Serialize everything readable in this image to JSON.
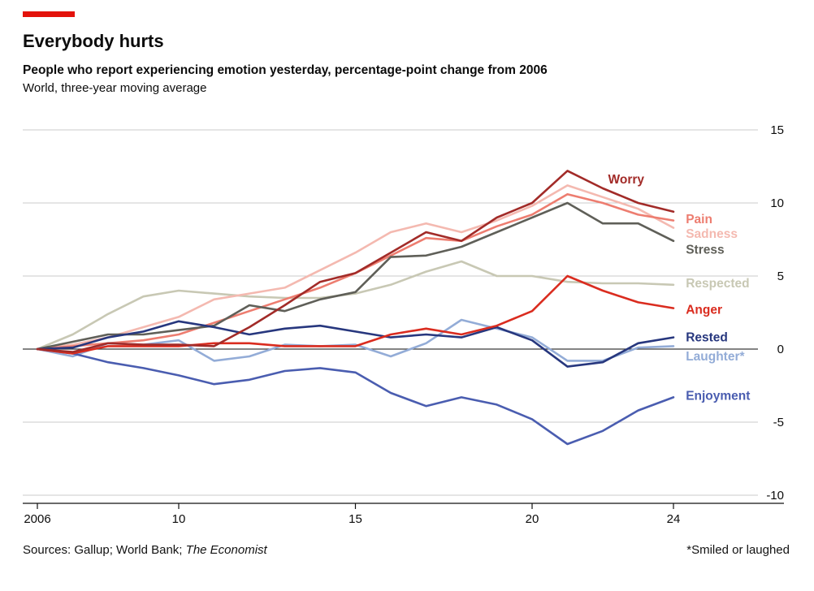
{
  "colors": {
    "accent": "#E3120B",
    "grid": "#CBCBCB",
    "zero_line": "#3a3a3a",
    "axis": "#111111",
    "text": "#0c0c0c"
  },
  "footer": {
    "sources_prefix": "Sources: Gallup; World Bank; ",
    "sources_italic": "The Economist",
    "footnote": "*Smiled or laughed"
  },
  "chart_data": {
    "type": "line",
    "title": "Everybody hurts",
    "subtitle": "People who report experiencing emotion yesterday, percentage-point change from 2006",
    "note": "World, three-year moving average",
    "xlim": [
      2006,
      2024
    ],
    "ylim": [
      -10,
      15
    ],
    "grid": true,
    "legend_position": "end-of-line-labels",
    "x": [
      2006,
      2007,
      2008,
      2009,
      2010,
      2011,
      2012,
      2013,
      2014,
      2015,
      2016,
      2017,
      2018,
      2019,
      2020,
      2021,
      2022,
      2023,
      2024
    ],
    "x_ticks": [
      {
        "v": 2006,
        "label": "2006"
      },
      {
        "v": 2010,
        "label": "10"
      },
      {
        "v": 2015,
        "label": "15"
      },
      {
        "v": 2020,
        "label": "20"
      },
      {
        "v": 2024,
        "label": "24"
      }
    ],
    "y_ticks": [
      15,
      10,
      5,
      0,
      -5,
      -10
    ],
    "series": [
      {
        "name": "Respected",
        "color": "#C8C8B4",
        "values": [
          0,
          1.0,
          2.4,
          3.6,
          4.0,
          3.8,
          3.6,
          3.5,
          3.5,
          3.8,
          4.4,
          5.3,
          6.0,
          5.0,
          5.0,
          4.6,
          4.5,
          4.5,
          4.4
        ],
        "label": {
          "x": 2024.35,
          "y": 4.5
        }
      },
      {
        "name": "Sadness",
        "color": "#F4B9B0",
        "values": [
          0,
          0.3,
          0.8,
          1.5,
          2.2,
          3.4,
          3.8,
          4.2,
          5.4,
          6.6,
          8.0,
          8.6,
          8.0,
          8.8,
          9.8,
          11.2,
          10.4,
          9.6,
          8.3
        ],
        "label": {
          "x": 2024.35,
          "y": 7.9
        }
      },
      {
        "name": "Pain",
        "color": "#ED7D70",
        "values": [
          0,
          0.2,
          0.4,
          0.6,
          1.0,
          1.8,
          2.6,
          3.4,
          4.2,
          5.2,
          6.4,
          7.6,
          7.4,
          8.4,
          9.2,
          10.6,
          10.0,
          9.2,
          8.8
        ],
        "label": {
          "x": 2024.35,
          "y": 8.9
        }
      },
      {
        "name": "Stress",
        "color": "#5F5F58",
        "values": [
          0,
          0.5,
          1.0,
          1.0,
          1.3,
          1.6,
          3.0,
          2.6,
          3.4,
          3.9,
          6.3,
          6.4,
          7.0,
          8.0,
          9.0,
          10.0,
          8.6,
          8.6,
          7.4
        ],
        "label": {
          "x": 2024.35,
          "y": 6.8
        }
      },
      {
        "name": "Laughter*",
        "color": "#93ACD7",
        "values": [
          0,
          -0.5,
          0.4,
          0.3,
          0.6,
          -0.8,
          -0.5,
          0.3,
          0.2,
          0.3,
          -0.5,
          0.4,
          2.0,
          1.4,
          0.8,
          -0.8,
          -0.8,
          0.1,
          0.2
        ],
        "label": {
          "x": 2024.35,
          "y": -0.5
        }
      },
      {
        "name": "Enjoyment",
        "color": "#4A5DB0",
        "values": [
          0,
          -0.3,
          -0.9,
          -1.3,
          -1.8,
          -2.4,
          -2.1,
          -1.5,
          -1.3,
          -1.6,
          -3.0,
          -3.9,
          -3.3,
          -3.8,
          -4.8,
          -6.5,
          -5.6,
          -4.2,
          -3.3
        ],
        "label": {
          "x": 2024.35,
          "y": -3.2
        }
      },
      {
        "name": "Rested",
        "color": "#27377E",
        "values": [
          0,
          0.1,
          0.8,
          1.2,
          1.9,
          1.5,
          1.0,
          1.4,
          1.6,
          1.2,
          0.8,
          1.0,
          0.8,
          1.5,
          0.6,
          -1.2,
          -0.9,
          0.4,
          0.8
        ],
        "label": {
          "x": 2024.35,
          "y": 0.8
        }
      },
      {
        "name": "Anger",
        "color": "#DA2C1F",
        "values": [
          0,
          -0.3,
          0.2,
          0.2,
          0.2,
          0.4,
          0.4,
          0.2,
          0.2,
          0.2,
          1.0,
          1.4,
          1.0,
          1.6,
          2.6,
          5.0,
          4.0,
          3.2,
          2.8
        ],
        "label": {
          "x": 2024.35,
          "y": 2.7
        }
      },
      {
        "name": "Worry",
        "color": "#A22B28",
        "values": [
          0,
          -0.2,
          0.4,
          0.3,
          0.3,
          0.2,
          1.5,
          3.0,
          4.6,
          5.2,
          6.6,
          8.0,
          7.4,
          9.0,
          10.0,
          12.2,
          11.0,
          10.0,
          9.4
        ],
        "label": {
          "x": 2022.15,
          "y": 11.6
        }
      }
    ]
  }
}
